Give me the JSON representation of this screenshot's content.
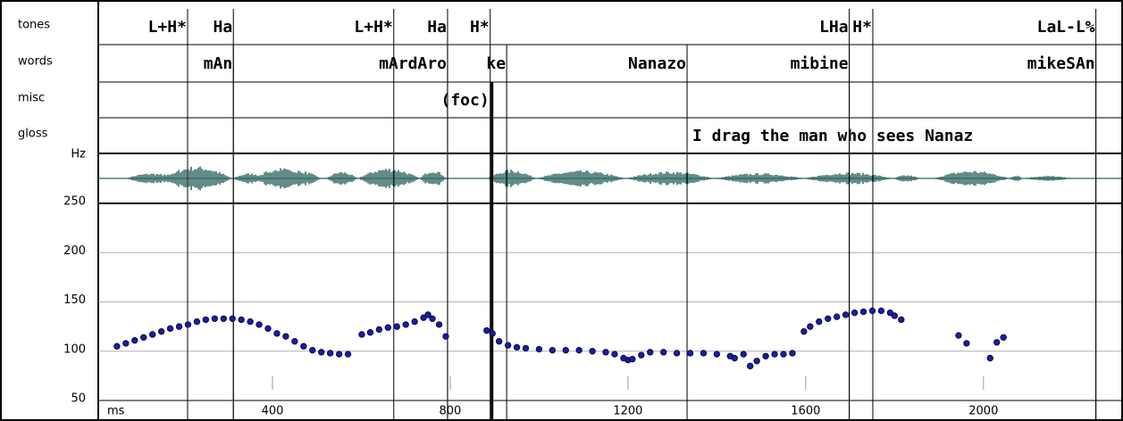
{
  "chart_data": {
    "type": "scatter",
    "tiers": [
      {
        "name": "tones",
        "labels": [
          {
            "time": 209,
            "label": "L+H*"
          },
          {
            "time": 312,
            "label": "Ha"
          },
          {
            "time": 673,
            "label": "L+H*"
          },
          {
            "time": 794,
            "label": "Ha"
          },
          {
            "time": 890,
            "label": "H*"
          },
          {
            "time": 1698,
            "label": "LHa"
          },
          {
            "time": 1751,
            "label": "H*"
          },
          {
            "time": 2253,
            "label": "LaL-L%"
          }
        ]
      },
      {
        "name": "words",
        "labels": [
          {
            "time": 312,
            "label": "mAn"
          },
          {
            "time": 794,
            "label": "mArdAro"
          },
          {
            "time": 927,
            "label": "ke"
          },
          {
            "time": 1333,
            "label": "Nanazo"
          },
          {
            "time": 1698,
            "label": "mibine"
          },
          {
            "time": 2253,
            "label": "mikeSAn"
          }
        ]
      },
      {
        "name": "misc",
        "labels": [
          {
            "time": 890,
            "label": "(foc)"
          }
        ]
      },
      {
        "name": "gloss",
        "labels": [
          {
            "time": 1345,
            "label": "I drag the man who sees Nanaz"
          }
        ]
      }
    ],
    "y_label": "Hz",
    "x_label": "ms",
    "color": "#1c1ca0",
    "x": [
      50,
      70,
      90,
      110,
      130,
      150,
      170,
      190,
      210,
      230,
      250,
      270,
      290,
      310,
      330,
      350,
      370,
      390,
      410,
      430,
      450,
      470,
      490,
      510,
      530,
      550,
      570,
      601,
      620,
      640,
      660,
      680,
      700,
      720,
      740,
      750,
      760,
      775,
      790,
      882,
      895,
      910,
      930,
      950,
      970,
      1000,
      1030,
      1060,
      1090,
      1120,
      1150,
      1170,
      1190,
      1200,
      1210,
      1230,
      1250,
      1280,
      1310,
      1340,
      1370,
      1400,
      1430,
      1440,
      1460,
      1475,
      1490,
      1510,
      1530,
      1550,
      1570,
      1596,
      1610,
      1630,
      1650,
      1670,
      1690,
      1710,
      1730,
      1750,
      1770,
      1790,
      1800,
      1815,
      1944,
      1962,
      2015,
      2030,
      2045
    ],
    "values": [
      105,
      108,
      111,
      114,
      117,
      120,
      123,
      125,
      127,
      130,
      132,
      133,
      133,
      133,
      132,
      130,
      127,
      123,
      118,
      115,
      110,
      105,
      101,
      99,
      98,
      97,
      97,
      117,
      119,
      122,
      124,
      125,
      127,
      130,
      134,
      137,
      133,
      127,
      115,
      121,
      118,
      110,
      106,
      104,
      103,
      102,
      101,
      101,
      101,
      100,
      99,
      97,
      93,
      91,
      92,
      96,
      99,
      99,
      98,
      98,
      98,
      97,
      95,
      93,
      97,
      85,
      90,
      95,
      97,
      97,
      98,
      120,
      125,
      130,
      133,
      135,
      137,
      139,
      140,
      141,
      141,
      139,
      136,
      132,
      116,
      108,
      93,
      109,
      114
    ],
    "xlim": [
      8,
      2310
    ],
    "ylim": [
      50,
      250
    ],
    "yticks": [
      50,
      100,
      150,
      200,
      250
    ],
    "xticks": [
      400,
      800,
      1200,
      1600,
      2000
    ],
    "grid": true
  }
}
